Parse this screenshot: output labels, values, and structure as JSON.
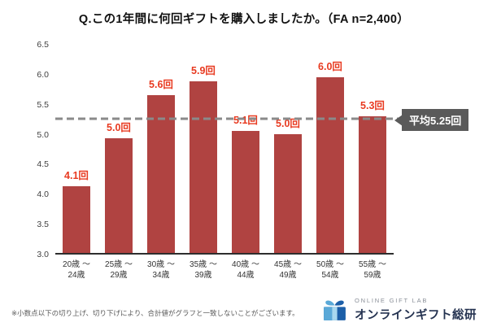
{
  "chart_data": {
    "type": "bar",
    "title": "Q.この1年間に何回ギフトを購入しましたか。（FA n=2,400）",
    "categories": [
      "20歳～24歳",
      "25歳～29歳",
      "30歳～34歳",
      "35歳～39歳",
      "40歳～44歳",
      "45歳～49歳",
      "50歳～54歳",
      "55歳～59歳"
    ],
    "values": [
      4.1,
      5.0,
      5.6,
      5.9,
      5.1,
      5.0,
      6.0,
      5.3
    ],
    "value_labels": [
      "4.1回",
      "5.0回",
      "5.6回",
      "5.9回",
      "5.1回",
      "5.0回",
      "6.0回",
      "5.3回"
    ],
    "bar_heights": [
      4.12,
      4.93,
      5.65,
      5.88,
      5.05,
      5.0,
      5.95,
      5.3
    ],
    "unit": "回",
    "ylim": [
      3.0,
      6.5
    ],
    "yticks": [
      "6.5",
      "6.0",
      "5.5",
      "5.0",
      "4.5",
      "4.0",
      "3.5",
      "3.0"
    ],
    "grid": false,
    "legend": "none",
    "average": 5.25,
    "average_label": "平均5.25回",
    "colors": {
      "bar": "#b04341",
      "value_label": "#e83a20",
      "average_line": "#8a8a8a",
      "callout_bg": "#5a5a5a",
      "callout_text": "#ffffff"
    }
  },
  "footer": {
    "note": "※小数点以下の切り上げ、切り下げにより、合計値がグラフと一致しないことがございます。",
    "logo_en": "ONLINE GIFT LAB",
    "logo_jp": "オンラインギフト総研",
    "logo_colors": {
      "primary": "#1c5fa8",
      "light": "#5aa9d8",
      "pale": "#a8d8ef",
      "text": "#243250"
    }
  }
}
